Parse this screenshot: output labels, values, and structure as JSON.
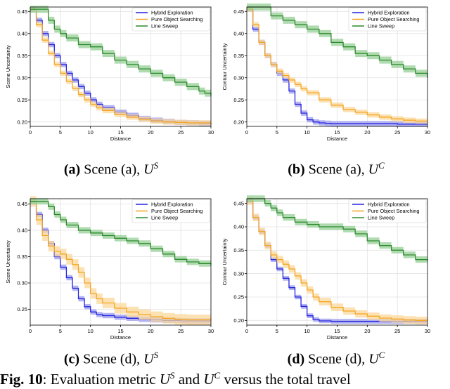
{
  "colors": {
    "hybrid": "#2424e0",
    "pure": "#f5a623",
    "sweep": "#2c8a2c",
    "hybrid_band": "#9a9aee",
    "pure_band": "#fbd79a",
    "sweep_band": "#95cf95"
  },
  "chart_data": [
    {
      "type": "line",
      "title": "",
      "xlabel": "Distance",
      "ylabel": "Scene Uncertainty",
      "xlim": [
        0,
        30
      ],
      "ylim": [
        0.19,
        0.46
      ],
      "xticks": [
        "0",
        "5",
        "10",
        "15",
        "20",
        "25",
        "30"
      ],
      "yticks": [
        "0.20",
        "0.25",
        "0.30",
        "0.35",
        "0.40",
        "0.45"
      ],
      "legend": [
        "Hybrid Exploration",
        "Pure Object Searching",
        "Line Sweep"
      ],
      "legend_position": "top-right",
      "series": [
        {
          "name": "Hybrid Exploration",
          "x": [
            0,
            1,
            2,
            3,
            4,
            5,
            6,
            7,
            8,
            9,
            10,
            11,
            12,
            14,
            16,
            18,
            20,
            22,
            24,
            26,
            28,
            30
          ],
          "values": [
            0.455,
            0.43,
            0.4,
            0.375,
            0.35,
            0.33,
            0.31,
            0.295,
            0.28,
            0.265,
            0.25,
            0.24,
            0.232,
            0.222,
            0.215,
            0.208,
            0.204,
            0.201,
            0.199,
            0.198,
            0.197,
            0.196
          ],
          "band": 0.006
        },
        {
          "name": "Pure Object Searching",
          "x": [
            0,
            1,
            2,
            3,
            4,
            5,
            6,
            7,
            8,
            9,
            10,
            11,
            12,
            14,
            16,
            18,
            20,
            22,
            24,
            26,
            28,
            30
          ],
          "values": [
            0.455,
            0.42,
            0.385,
            0.355,
            0.33,
            0.31,
            0.292,
            0.276,
            0.262,
            0.25,
            0.24,
            0.232,
            0.226,
            0.217,
            0.211,
            0.206,
            0.202,
            0.2,
            0.199,
            0.198,
            0.198,
            0.197
          ],
          "band": 0.006
        },
        {
          "name": "Line Sweep",
          "x": [
            0,
            1,
            2,
            3,
            4,
            5,
            6,
            8,
            10,
            12,
            14,
            16,
            18,
            20,
            22,
            24,
            26,
            28,
            29,
            30
          ],
          "values": [
            0.455,
            0.455,
            0.455,
            0.43,
            0.41,
            0.4,
            0.39,
            0.375,
            0.37,
            0.355,
            0.34,
            0.33,
            0.32,
            0.31,
            0.3,
            0.29,
            0.28,
            0.27,
            0.265,
            0.26
          ],
          "band": 0.008
        }
      ]
    },
    {
      "type": "line",
      "title": "",
      "xlabel": "Distance",
      "ylabel": "Contour Uncertainty",
      "xlim": [
        0,
        30
      ],
      "ylim": [
        0.19,
        0.46
      ],
      "xticks": [
        "0",
        "5",
        "10",
        "15",
        "20",
        "25",
        "30"
      ],
      "yticks": [
        "0.20",
        "0.25",
        "0.30",
        "0.35",
        "0.40",
        "0.45"
      ],
      "legend": [
        "Hybrid Exploration",
        "Pure Object Searching",
        "Line Sweep"
      ],
      "legend_position": "top-right",
      "series": [
        {
          "name": "Hybrid Exploration",
          "x": [
            0,
            1,
            2,
            3,
            4,
            5,
            6,
            7,
            8,
            9,
            10,
            11,
            12,
            13,
            14,
            16,
            20,
            25,
            30
          ],
          "values": [
            0.455,
            0.41,
            0.38,
            0.35,
            0.33,
            0.31,
            0.295,
            0.27,
            0.24,
            0.22,
            0.205,
            0.2,
            0.198,
            0.197,
            0.196,
            0.196,
            0.196,
            0.195,
            0.195
          ],
          "band": 0.006
        },
        {
          "name": "Pure Object Searching",
          "x": [
            0,
            1,
            2,
            3,
            4,
            5,
            6,
            7,
            8,
            9,
            10,
            12,
            14,
            16,
            18,
            20,
            22,
            24,
            26,
            28,
            30
          ],
          "values": [
            0.455,
            0.42,
            0.38,
            0.35,
            0.33,
            0.315,
            0.305,
            0.295,
            0.285,
            0.275,
            0.266,
            0.25,
            0.238,
            0.228,
            0.222,
            0.216,
            0.211,
            0.207,
            0.204,
            0.202,
            0.201
          ],
          "band": 0.006
        },
        {
          "name": "Line Sweep",
          "x": [
            0,
            2,
            4,
            6,
            8,
            10,
            12,
            14,
            16,
            18,
            20,
            22,
            24,
            26,
            28,
            30
          ],
          "values": [
            0.46,
            0.46,
            0.44,
            0.43,
            0.42,
            0.41,
            0.4,
            0.38,
            0.37,
            0.355,
            0.35,
            0.34,
            0.33,
            0.32,
            0.31,
            0.3
          ],
          "band": 0.008
        }
      ]
    },
    {
      "type": "line",
      "title": "",
      "xlabel": "Distance",
      "ylabel": "Scene Uncertainty",
      "xlim": [
        0,
        30
      ],
      "ylim": [
        0.22,
        0.46
      ],
      "xticks": [
        "0",
        "5",
        "10",
        "15",
        "20",
        "25",
        "30"
      ],
      "yticks": [
        "0.25",
        "0.30",
        "0.35",
        "0.40",
        "0.45"
      ],
      "legend": [
        "Hybrid Exploration",
        "Pure Object Searching",
        "Line Sweep"
      ],
      "legend_position": "top-right",
      "series": [
        {
          "name": "Hybrid Exploration",
          "x": [
            0,
            1,
            2,
            3,
            4,
            5,
            6,
            7,
            8,
            9,
            10,
            11,
            12,
            14,
            16,
            18,
            20,
            22,
            25,
            28,
            30
          ],
          "values": [
            0.455,
            0.43,
            0.4,
            0.375,
            0.35,
            0.33,
            0.31,
            0.29,
            0.27,
            0.255,
            0.245,
            0.24,
            0.238,
            0.235,
            0.233,
            0.231,
            0.23,
            0.229,
            0.228,
            0.228,
            0.228
          ],
          "band": 0.005
        },
        {
          "name": "Pure Object Searching",
          "x": [
            0,
            1,
            2,
            3,
            4,
            5,
            6,
            7,
            8,
            9,
            10,
            11,
            12,
            14,
            16,
            18,
            20,
            22,
            24,
            26,
            28,
            30
          ],
          "values": [
            0.455,
            0.42,
            0.39,
            0.37,
            0.36,
            0.355,
            0.345,
            0.335,
            0.32,
            0.3,
            0.28,
            0.27,
            0.262,
            0.252,
            0.245,
            0.24,
            0.236,
            0.233,
            0.231,
            0.23,
            0.23,
            0.229
          ],
          "band": 0.01
        },
        {
          "name": "Line Sweep",
          "x": [
            0,
            2,
            3,
            4,
            5,
            6,
            8,
            10,
            12,
            14,
            16,
            18,
            20,
            22,
            24,
            26,
            28,
            30
          ],
          "values": [
            0.455,
            0.455,
            0.445,
            0.43,
            0.42,
            0.41,
            0.4,
            0.395,
            0.39,
            0.385,
            0.38,
            0.375,
            0.365,
            0.355,
            0.345,
            0.34,
            0.337,
            0.335
          ],
          "band": 0.006
        }
      ]
    },
    {
      "type": "line",
      "title": "",
      "xlabel": "Distance",
      "ylabel": "Contour Uncertainty",
      "xlim": [
        0,
        30
      ],
      "ylim": [
        0.19,
        0.46
      ],
      "xticks": [
        "0",
        "5",
        "10",
        "15",
        "20",
        "25",
        "30"
      ],
      "yticks": [
        "0.20",
        "0.25",
        "0.30",
        "0.35",
        "0.40",
        "0.45"
      ],
      "legend": [
        "Hybrid Exploration",
        "Pure Object Searching",
        "Line Sweep"
      ],
      "legend_position": "top-right",
      "series": [
        {
          "name": "Hybrid Exploration",
          "x": [
            0,
            1,
            2,
            3,
            4,
            5,
            6,
            7,
            8,
            9,
            10,
            11,
            12,
            14,
            16,
            20,
            25,
            30
          ],
          "values": [
            0.455,
            0.42,
            0.39,
            0.36,
            0.33,
            0.31,
            0.29,
            0.27,
            0.25,
            0.23,
            0.21,
            0.202,
            0.199,
            0.198,
            0.198,
            0.198,
            0.198,
            0.198
          ],
          "band": 0.005
        },
        {
          "name": "Pure Object Searching",
          "x": [
            0,
            1,
            2,
            3,
            4,
            5,
            6,
            7,
            8,
            9,
            10,
            11,
            12,
            14,
            16,
            18,
            20,
            22,
            24,
            26,
            28,
            30
          ],
          "values": [
            0.455,
            0.42,
            0.39,
            0.36,
            0.34,
            0.33,
            0.32,
            0.31,
            0.295,
            0.28,
            0.265,
            0.25,
            0.24,
            0.228,
            0.22,
            0.214,
            0.209,
            0.205,
            0.203,
            0.201,
            0.2,
            0.2
          ],
          "band": 0.008
        },
        {
          "name": "Line Sweep",
          "x": [
            0,
            2,
            3,
            4,
            5,
            6,
            8,
            10,
            12,
            14,
            16,
            18,
            20,
            22,
            24,
            26,
            28,
            30
          ],
          "values": [
            0.46,
            0.46,
            0.45,
            0.44,
            0.43,
            0.42,
            0.41,
            0.405,
            0.4,
            0.4,
            0.395,
            0.385,
            0.37,
            0.36,
            0.35,
            0.34,
            0.33,
            0.328
          ],
          "band": 0.007
        }
      ]
    }
  ],
  "captions": [
    {
      "label": "(a)",
      "text": " Scene (a), ",
      "var": "U",
      "sup": "S"
    },
    {
      "label": "(b)",
      "text": " Scene (a), ",
      "var": "U",
      "sup": "C"
    },
    {
      "label": "(c)",
      "text": " Scene (d), ",
      "var": "U",
      "sup": "S"
    },
    {
      "label": "(d)",
      "text": " Scene (d), ",
      "var": "U",
      "sup": "C"
    }
  ],
  "figure_caption": {
    "label": "Fig. 10",
    "text_a": ": Evaluation metric ",
    "u1": "U",
    "s1": "S",
    "and": " and ",
    "u2": "U",
    "s2": "C",
    "rest": " versus the total travel"
  }
}
